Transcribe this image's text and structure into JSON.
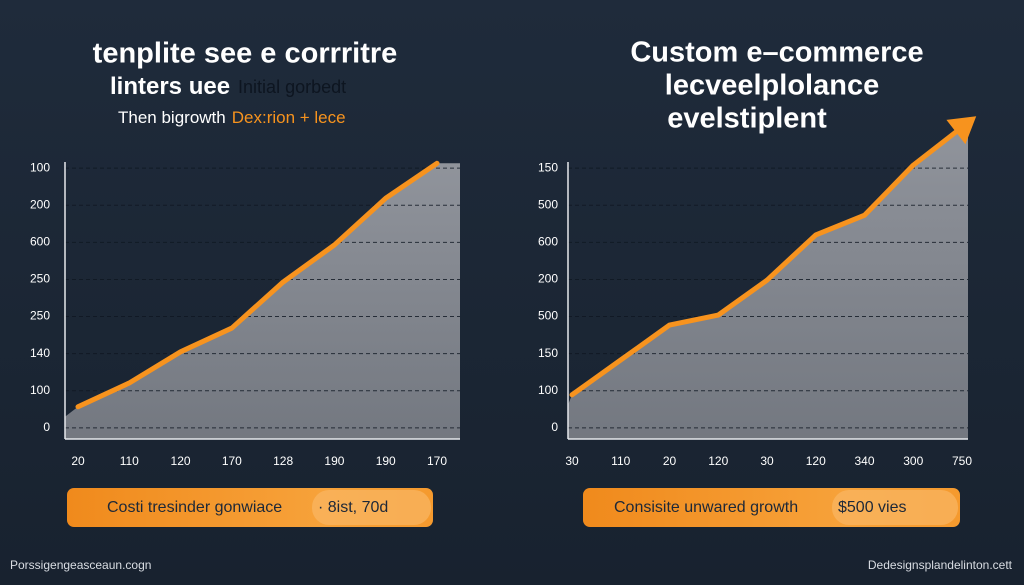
{
  "chart_data": [
    {
      "type": "area",
      "title": "tenplite see e corrritre",
      "subtitle": "linters uee",
      "subtitle_note": "Initial gorbedt",
      "tagline": "Then bigrowth",
      "tagline_highlight": "Dex:rion + lece",
      "categories": [
        "20",
        "110",
        "120",
        "170",
        "128",
        "190",
        "190",
        "170"
      ],
      "series": [
        {
          "color": "#f7931e",
          "values": [
            0.57,
            1.21,
            2.05,
            2.69,
            3.93,
            4.93,
            6.19,
            7.13
          ]
        }
      ],
      "ylim": [
        -0.3,
        7.3
      ],
      "yticks": [
        {
          "value": 0,
          "label": "0"
        },
        {
          "value": 1,
          "label": "100"
        },
        {
          "value": 2,
          "label": "140"
        },
        {
          "value": 3,
          "label": "250"
        },
        {
          "value": 4,
          "label": "250"
        },
        {
          "value": 5,
          "label": "600"
        },
        {
          "value": 6,
          "label": "200"
        },
        {
          "value": 7,
          "label": "100"
        }
      ],
      "grid": true,
      "banner": "Costi tresinder gonwiace",
      "banner_highlight": "· 8ist, 70d"
    },
    {
      "type": "area",
      "title_lines": [
        "Custom e–commerce",
        "lecveelplolance",
        "evelstiplent"
      ],
      "categories": [
        "30",
        "110",
        "20",
        "120",
        "30",
        "120",
        "340",
        "300",
        "750"
      ],
      "series": [
        {
          "color": "#f7931e",
          "values": [
            0.89,
            1.83,
            2.77,
            3.04,
            3.98,
            5.2,
            5.73,
            7.08,
            8.1
          ]
        }
      ],
      "ylim": [
        -0.3,
        7.3
      ],
      "yticks": [
        {
          "value": 0,
          "label": "0"
        },
        {
          "value": 1,
          "label": "100"
        },
        {
          "value": 2,
          "label": "150"
        },
        {
          "value": 3,
          "label": "500"
        },
        {
          "value": 4,
          "label": "200"
        },
        {
          "value": 5,
          "label": "600"
        },
        {
          "value": 6,
          "label": "500"
        },
        {
          "value": 7,
          "label": "150"
        }
      ],
      "grid": true,
      "banner": "Consisite unwared growth",
      "banner_highlight": "$500 vies"
    }
  ],
  "footer_left": "Porssigengeasceaun.cogn",
  "footer_right": "Dedesignsplandelinton.cett"
}
